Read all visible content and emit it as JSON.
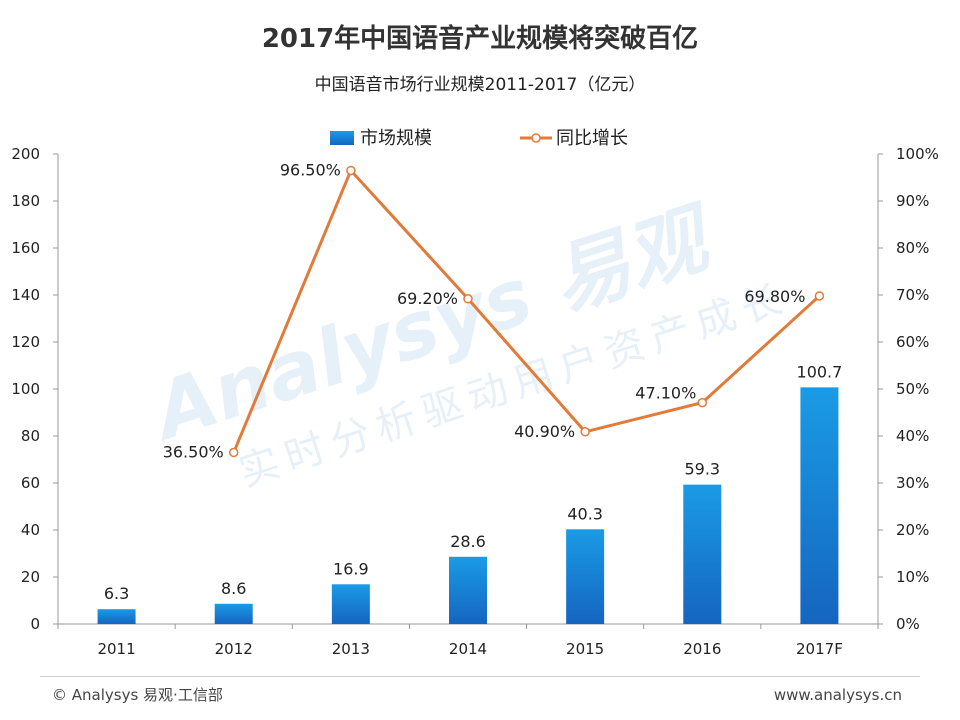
{
  "header": {
    "title": "2017年中国语音产业规模将突破百亿",
    "subtitle": "中国语音市场行业规模2011-2017（亿元）"
  },
  "footer": {
    "left": "© Analysys 易观·工信部",
    "right": "www.analysys.cn"
  },
  "watermark": {
    "main": "Analysys 易观",
    "sub": "实时分析驱动用户资产成长"
  },
  "colors": {
    "bar": "#1a82d6",
    "line": "#e07b39",
    "axis": "#999999"
  },
  "chart_data": {
    "type": "bar",
    "categories": [
      "2011",
      "2012",
      "2013",
      "2014",
      "2015",
      "2016",
      "2017F"
    ],
    "series": [
      {
        "name": "市场规模",
        "type": "bar",
        "axis": "left",
        "values": [
          6.3,
          8.6,
          16.9,
          28.6,
          40.3,
          59.3,
          100.7
        ],
        "labels": [
          "6.3",
          "8.6",
          "16.9",
          "28.6",
          "40.3",
          "59.3",
          "100.7"
        ]
      },
      {
        "name": "同比增长",
        "type": "line",
        "axis": "right",
        "values": [
          null,
          36.5,
          96.5,
          69.2,
          40.9,
          47.1,
          69.8
        ],
        "labels": [
          "",
          "36.50%",
          "96.50%",
          "69.20%",
          "40.90%",
          "47.10%",
          "69.80%"
        ]
      }
    ],
    "ylim": [
      0,
      200
    ],
    "yticks": [
      "0",
      "20",
      "40",
      "60",
      "80",
      "100",
      "120",
      "140",
      "160",
      "180",
      "200"
    ],
    "y2lim": [
      0,
      100
    ],
    "y2ticks": [
      "0%",
      "10%",
      "20%",
      "30%",
      "40%",
      "50%",
      "60%",
      "70%",
      "80%",
      "90%",
      "100%"
    ],
    "legend": "top-center",
    "grid": false
  }
}
